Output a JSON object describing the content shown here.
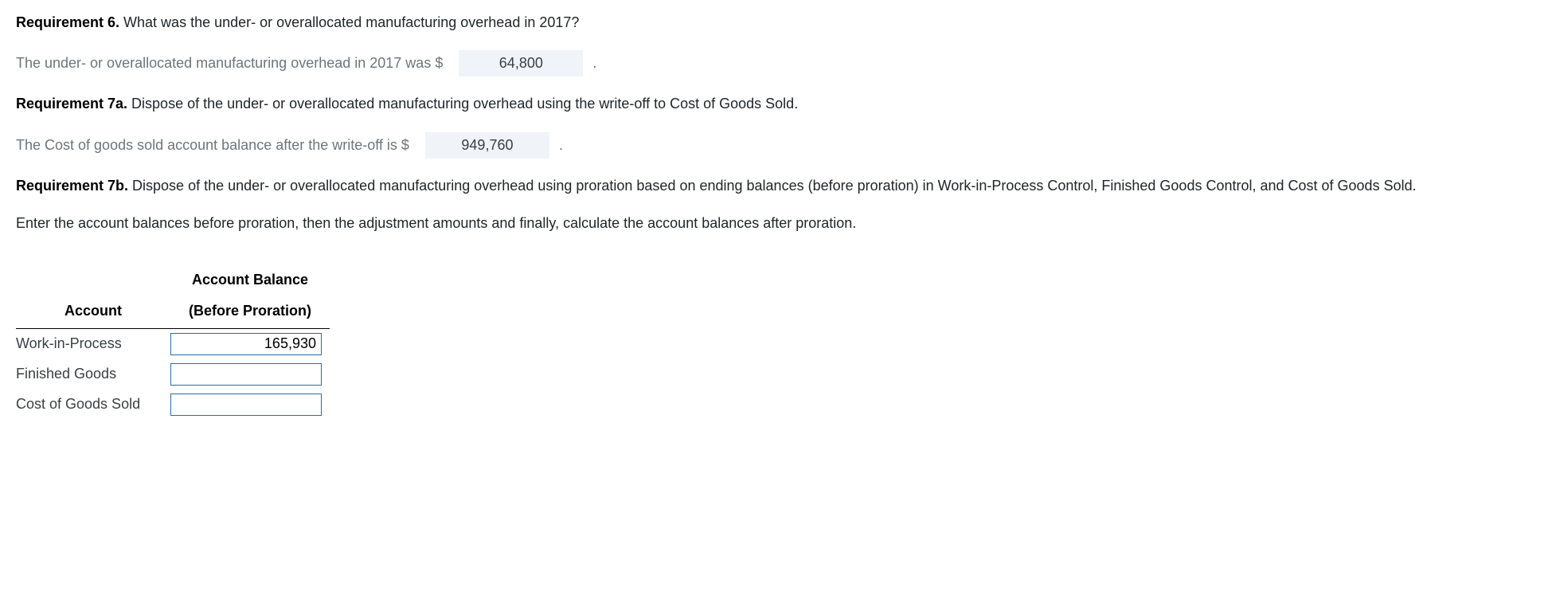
{
  "req6": {
    "label": "Requirement 6.",
    "text": " What was the under- or overallocated manufacturing overhead in 2017?",
    "answer_lead": "The under- or overallocated manufacturing overhead in 2017 was $",
    "value": "64,800",
    "trail": "."
  },
  "req7a": {
    "label": "Requirement 7a.",
    "text": " Dispose of the under- or overallocated manufacturing overhead using the write-off to Cost of Goods Sold.",
    "answer_lead": "The Cost of goods sold account balance after the write-off is $",
    "value": "949,760",
    "trail": "."
  },
  "req7b": {
    "label": "Requirement 7b.",
    "text": " Dispose of the under- or overallocated manufacturing overhead using proration based on ending balances (before proration) in Work-in-Process Control, Finished Goods Control, and Cost of Goods Sold.",
    "instruction": "Enter the account balances before proration, then the adjustment amounts and finally, calculate the account balances after proration."
  },
  "table": {
    "header_top": "Account Balance",
    "header_account": "Account",
    "header_before": "(Before Proration)",
    "rows": [
      {
        "label": "Work-in-Process",
        "value": "165,930"
      },
      {
        "label": "Finished Goods",
        "value": ""
      },
      {
        "label": "Cost of Goods Sold",
        "value": ""
      }
    ]
  },
  "colors": {
    "muted_text": "#6c757d",
    "body_text": "#212529",
    "value_box_bg": "#f0f3f7",
    "input_border": "#2b6ca3",
    "header_rule": "#000000"
  }
}
